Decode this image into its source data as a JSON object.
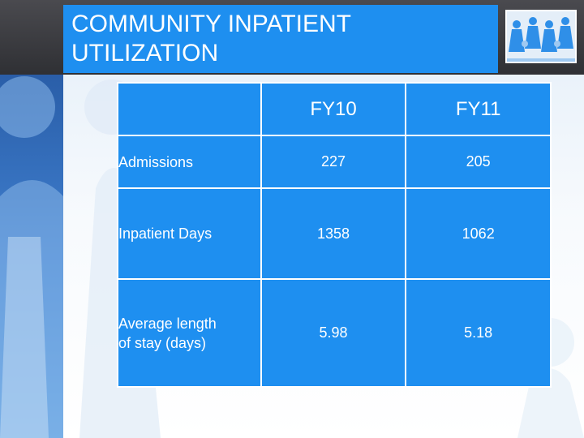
{
  "slide": {
    "title": "COMMUNITY INPATIENT\nUTILIZATION",
    "logo_icon": "people-chain-icon"
  },
  "table": {
    "columns": [
      "",
      "FY10",
      "FY11"
    ],
    "rows": [
      {
        "label": "Admissions",
        "fy10": "227",
        "fy11": "205"
      },
      {
        "label": "Inpatient Days",
        "fy10": "1358",
        "fy11": "1062"
      },
      {
        "label": "Average length\nof stay (days)",
        "fy10": "5.98",
        "fy11": "5.18"
      }
    ]
  },
  "colors": {
    "accent": "#1e8ff0",
    "header_dark": "#3a3b40"
  }
}
